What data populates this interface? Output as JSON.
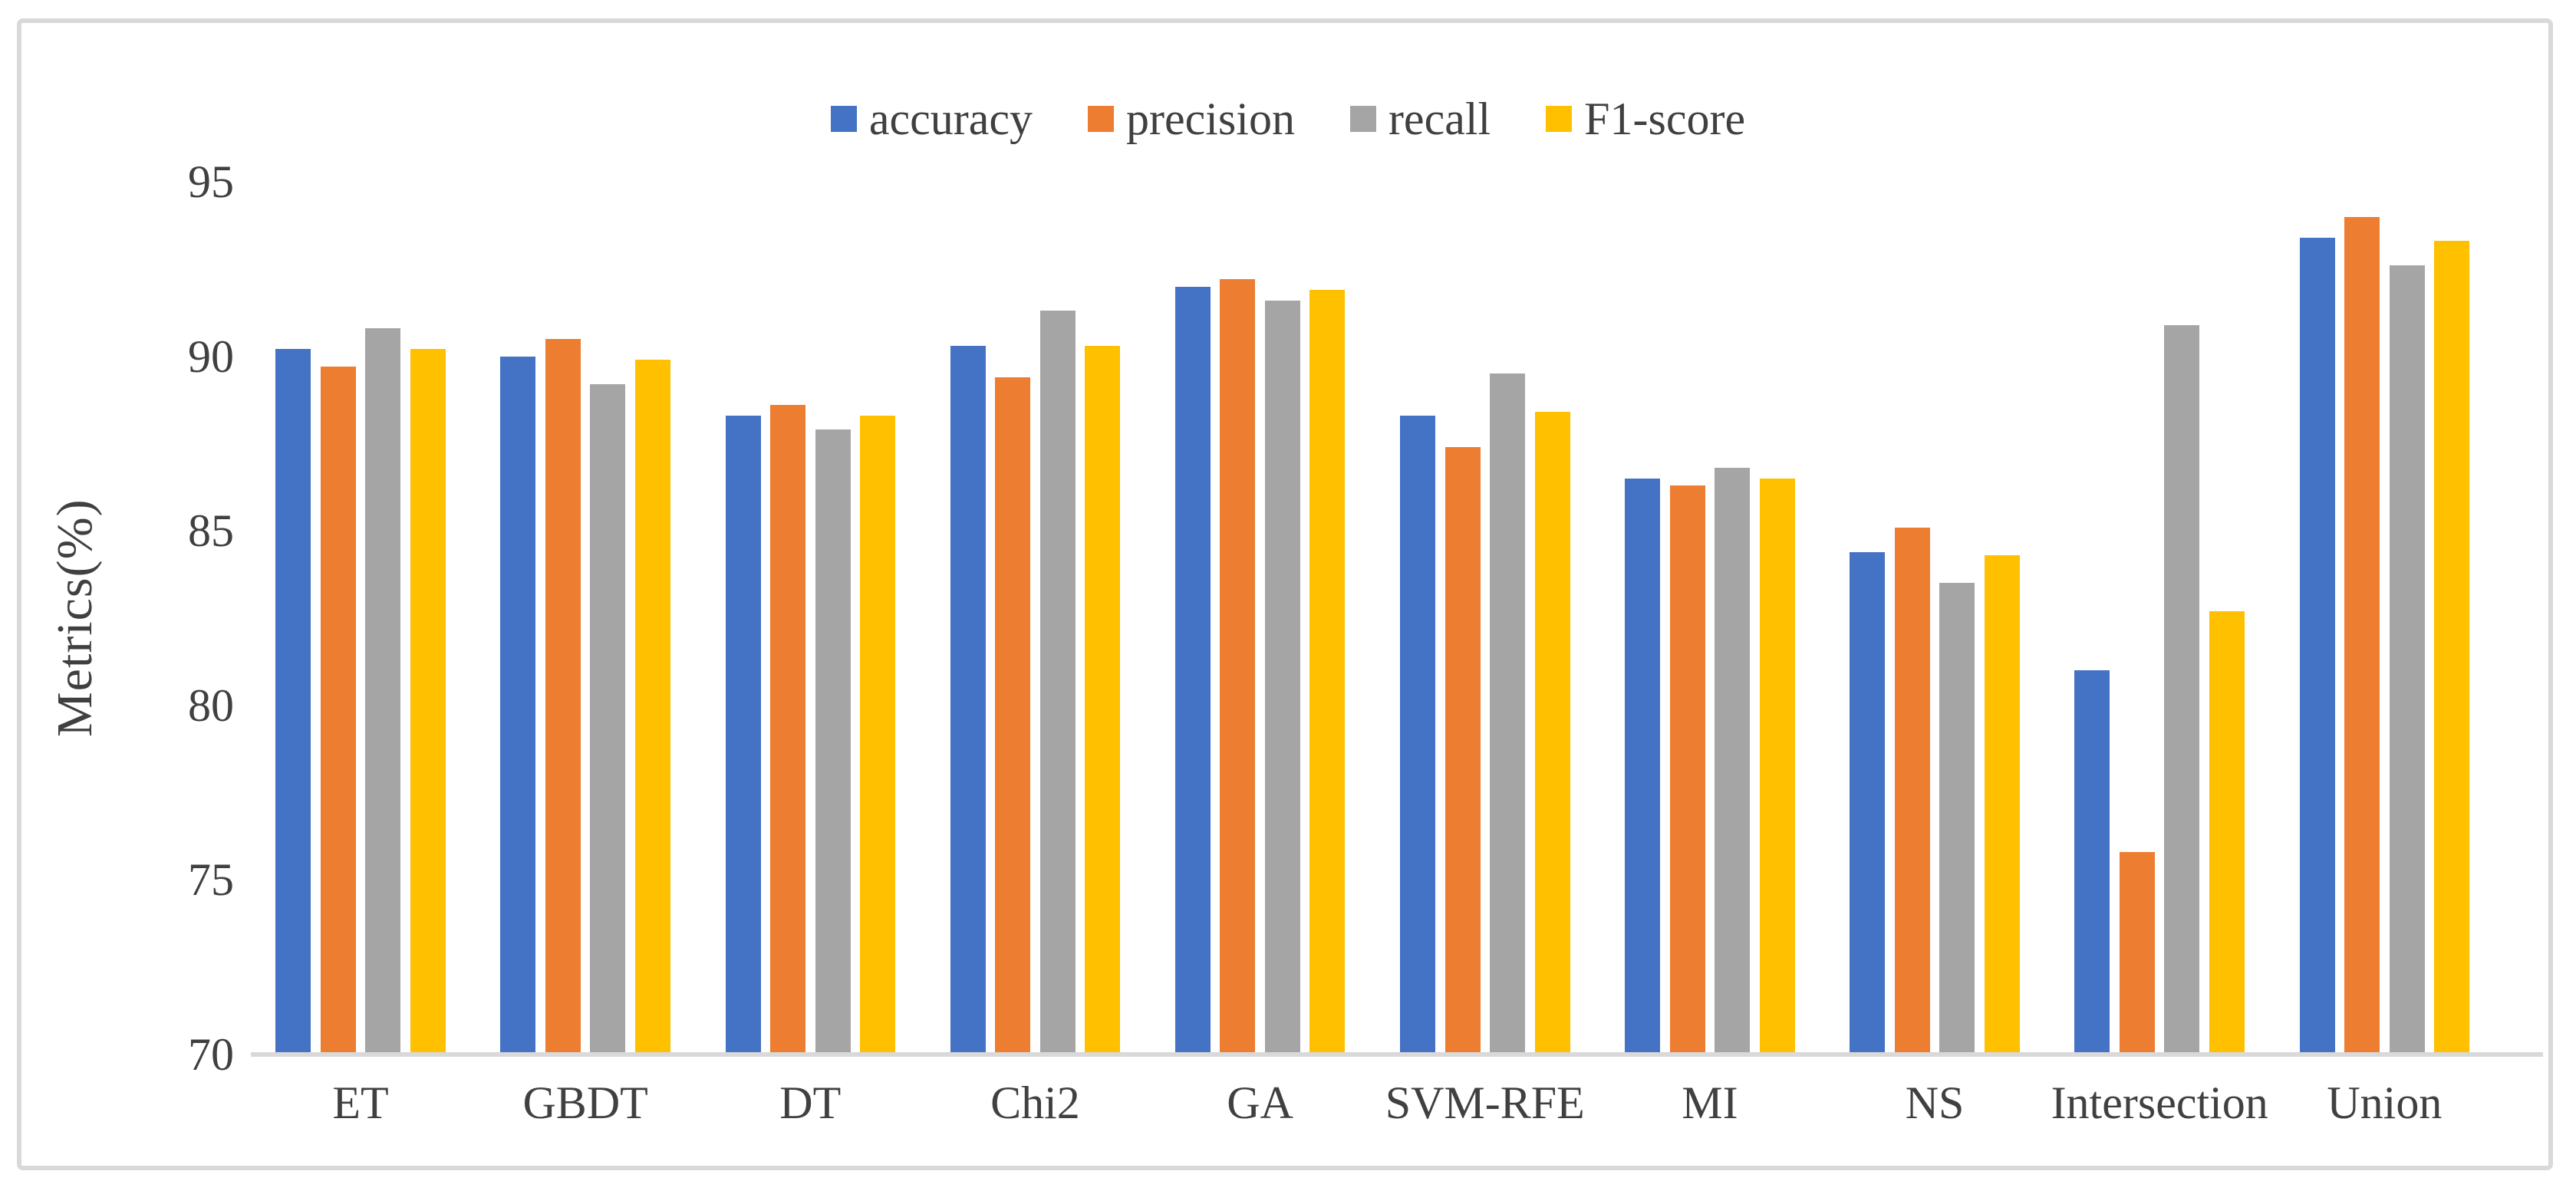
{
  "figure": {
    "background": "#FFFFFF",
    "border_color": "#D9D9D9"
  },
  "legend": {
    "position": "top-center",
    "items": [
      {
        "label": "accuracy",
        "color": "#4472C4"
      },
      {
        "label": "precision",
        "color": "#ED7D31"
      },
      {
        "label": "recall",
        "color": "#A5A5A5"
      },
      {
        "label": "F1-score",
        "color": "#FFC000"
      }
    ]
  },
  "chart_data": {
    "type": "bar",
    "title": "",
    "xlabel": "",
    "ylabel": "Metrics(%)",
    "ylim": [
      70,
      95
    ],
    "yticks": [
      70,
      75,
      80,
      85,
      90,
      95
    ],
    "grid": false,
    "legend_position": "top",
    "categories": [
      "ET",
      "GBDT",
      "DT",
      "Chi2",
      "GA",
      "SVM-RFE",
      "MI",
      "NS",
      "Intersection",
      "Union"
    ],
    "series": [
      {
        "name": "accuracy",
        "color": "#4472C4",
        "values": [
          90.2,
          90.0,
          88.3,
          90.3,
          92.0,
          88.3,
          86.5,
          84.4,
          81.0,
          93.4
        ]
      },
      {
        "name": "precision",
        "color": "#ED7D31",
        "values": [
          89.7,
          90.5,
          88.6,
          89.4,
          92.2,
          87.4,
          86.3,
          85.1,
          75.8,
          94.0
        ]
      },
      {
        "name": "recall",
        "color": "#A5A5A5",
        "values": [
          90.8,
          89.2,
          87.9,
          91.3,
          91.6,
          89.5,
          86.8,
          83.5,
          90.9,
          92.6
        ]
      },
      {
        "name": "F1-score",
        "color": "#FFC000",
        "values": [
          90.2,
          89.9,
          88.3,
          90.3,
          91.9,
          88.4,
          86.5,
          84.3,
          82.7,
          93.3
        ]
      }
    ]
  }
}
